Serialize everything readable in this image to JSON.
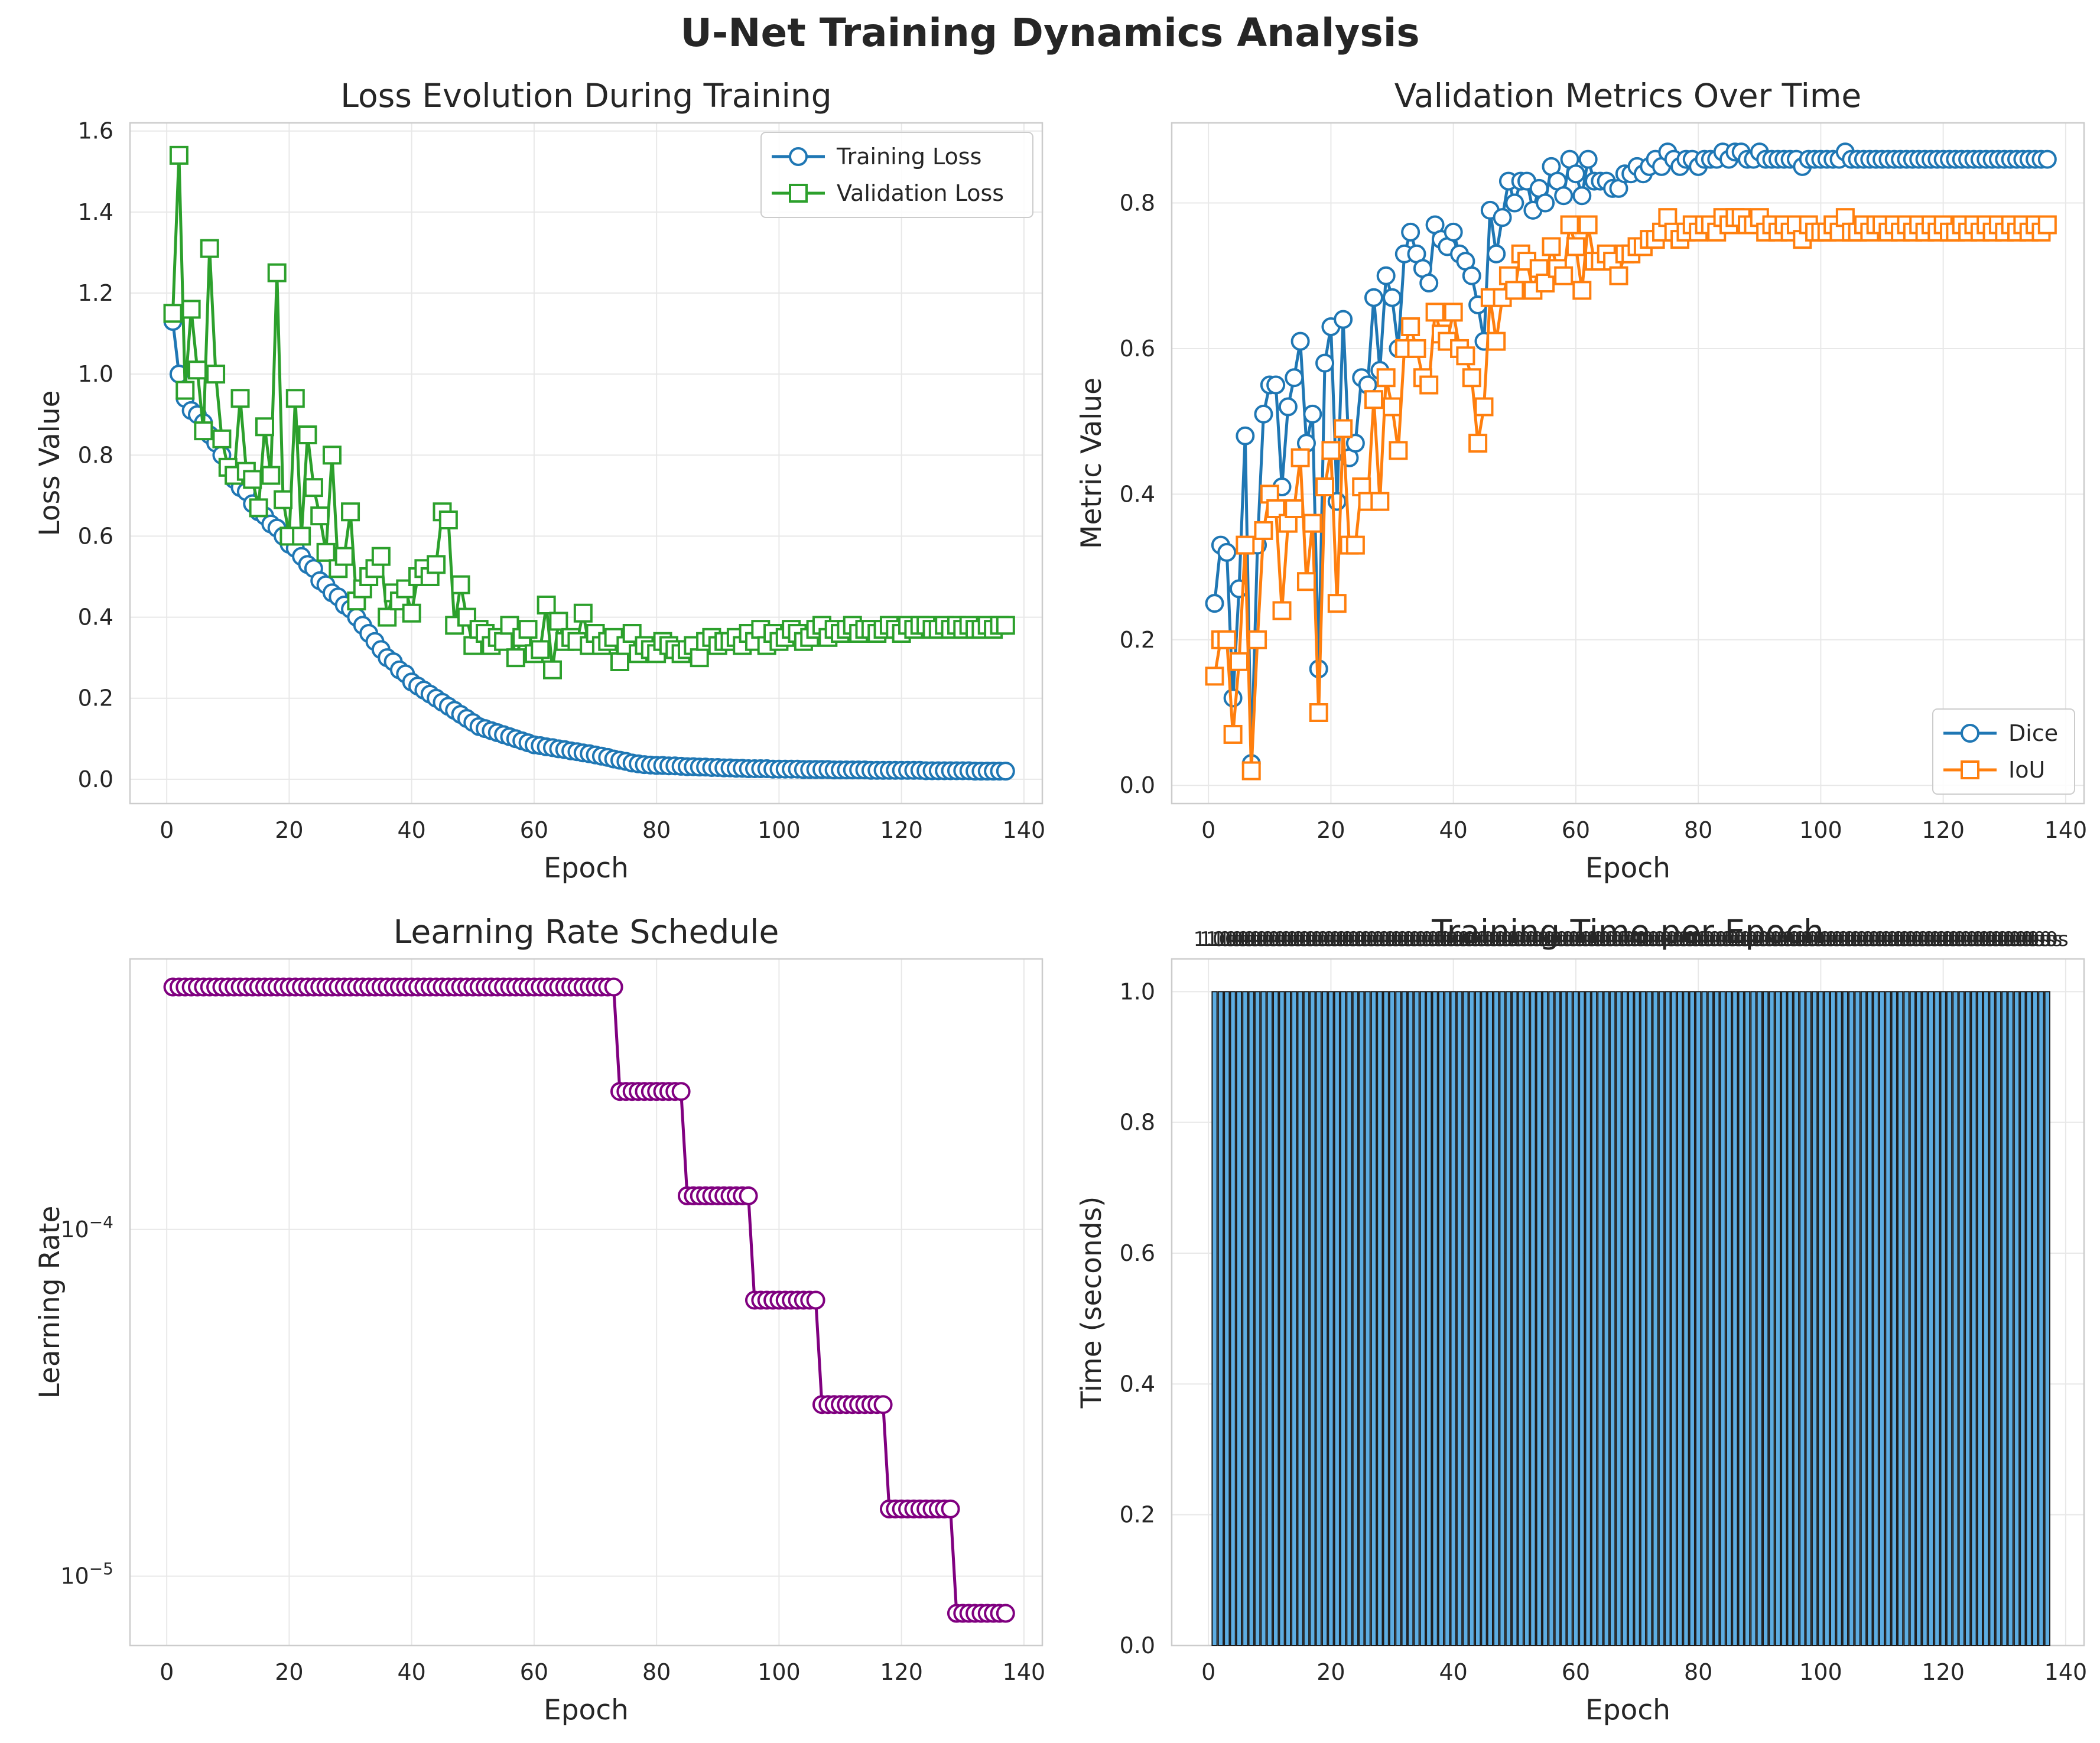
{
  "suptitle": "U-Net Training Dynamics Analysis",
  "chart_data": [
    {
      "id": "loss",
      "type": "line",
      "title": "Loss Evolution During Training",
      "xlabel": "Epoch",
      "ylabel": "Loss Value",
      "xlim": [
        -6,
        143
      ],
      "ylim": [
        -0.06,
        1.62
      ],
      "xticks": [
        0,
        20,
        40,
        60,
        80,
        100,
        120,
        140
      ],
      "yticks": [
        0.0,
        0.2,
        0.4,
        0.6,
        0.8,
        1.0,
        1.2,
        1.4,
        1.6
      ],
      "grid": true,
      "legend": "upper-right",
      "series": [
        {
          "name": "Training Loss",
          "color": "#1f77b4",
          "marker": "circle",
          "x_start": 1,
          "x_end": 137,
          "anchors": [
            [
              1,
              1.13
            ],
            [
              2,
              1.0
            ],
            [
              5,
              0.9
            ],
            [
              10,
              0.76
            ],
            [
              15,
              0.67
            ],
            [
              20,
              0.57
            ],
            [
              25,
              0.48
            ],
            [
              30,
              0.4
            ],
            [
              35,
              0.31
            ],
            [
              40,
              0.24
            ],
            [
              45,
              0.19
            ],
            [
              50,
              0.14
            ],
            [
              55,
              0.11
            ],
            [
              60,
              0.085
            ],
            [
              70,
              0.06
            ],
            [
              80,
              0.035
            ],
            [
              90,
              0.028
            ],
            [
              100,
              0.025
            ],
            [
              120,
              0.022
            ],
            [
              137,
              0.02
            ]
          ],
          "values": [
            1.13,
            1.0,
            0.94,
            0.91,
            0.9,
            0.88,
            0.85,
            0.83,
            0.8,
            0.77,
            0.74,
            0.72,
            0.71,
            0.68,
            0.66,
            0.65,
            0.63,
            0.62,
            0.6,
            0.58,
            0.57,
            0.55,
            0.53,
            0.52,
            0.49,
            0.48,
            0.46,
            0.45,
            0.43,
            0.42,
            0.4,
            0.38,
            0.36,
            0.34,
            0.32,
            0.3,
            0.29,
            0.27,
            0.26,
            0.24,
            0.23,
            0.22,
            0.21,
            0.2,
            0.19,
            0.18,
            0.17,
            0.16,
            0.15,
            0.14,
            0.13,
            0.125,
            0.12,
            0.115,
            0.11,
            0.105,
            0.1,
            0.095,
            0.09,
            0.085,
            0.083,
            0.08,
            0.078,
            0.075,
            0.073,
            0.07,
            0.068,
            0.065,
            0.063,
            0.06,
            0.057,
            0.054,
            0.05,
            0.047,
            0.044,
            0.04,
            0.038,
            0.036,
            0.035,
            0.034,
            0.034,
            0.033,
            0.033,
            0.032,
            0.031,
            0.031,
            0.03,
            0.03,
            0.029,
            0.029,
            0.028,
            0.028,
            0.027,
            0.027,
            0.026,
            0.026,
            0.026,
            0.026,
            0.025,
            0.025,
            0.025,
            0.025,
            0.025,
            0.024,
            0.024,
            0.024,
            0.024,
            0.024,
            0.023,
            0.023,
            0.023,
            0.023,
            0.023,
            0.023,
            0.022,
            0.022,
            0.022,
            0.022,
            0.022,
            0.022,
            0.022,
            0.022,
            0.022,
            0.021,
            0.021,
            0.021,
            0.021,
            0.021,
            0.021,
            0.021,
            0.021,
            0.02,
            0.02,
            0.02,
            0.02,
            0.02,
            0.02
          ]
        },
        {
          "name": "Validation Loss",
          "color": "#2ca02c",
          "marker": "square",
          "x_start": 1,
          "x_end": 137,
          "values": [
            1.15,
            1.54,
            0.96,
            1.16,
            1.01,
            0.86,
            1.31,
            1.0,
            0.84,
            0.77,
            0.75,
            0.94,
            0.76,
            0.74,
            0.67,
            0.87,
            0.75,
            1.25,
            0.69,
            0.6,
            0.94,
            0.6,
            0.85,
            0.72,
            0.65,
            0.56,
            0.8,
            0.52,
            0.55,
            0.66,
            0.44,
            0.47,
            0.5,
            0.52,
            0.55,
            0.4,
            0.46,
            0.44,
            0.47,
            0.41,
            0.5,
            0.52,
            0.5,
            0.53,
            0.66,
            0.64,
            0.38,
            0.48,
            0.4,
            0.33,
            0.37,
            0.36,
            0.33,
            0.35,
            0.34,
            0.38,
            0.3,
            0.35,
            0.37,
            0.31,
            0.32,
            0.43,
            0.27,
            0.39,
            0.34,
            0.35,
            0.34,
            0.41,
            0.33,
            0.36,
            0.33,
            0.34,
            0.35,
            0.29,
            0.33,
            0.36,
            0.31,
            0.33,
            0.32,
            0.31,
            0.34,
            0.33,
            0.32,
            0.31,
            0.32,
            0.33,
            0.3,
            0.34,
            0.35,
            0.33,
            0.34,
            0.34,
            0.35,
            0.33,
            0.36,
            0.34,
            0.37,
            0.33,
            0.36,
            0.34,
            0.35,
            0.37,
            0.36,
            0.34,
            0.35,
            0.37,
            0.38,
            0.35,
            0.37,
            0.36,
            0.37,
            0.38,
            0.36,
            0.37,
            0.37,
            0.36,
            0.37,
            0.38,
            0.37,
            0.36,
            0.38,
            0.37,
            0.38,
            0.38,
            0.37,
            0.37,
            0.38,
            0.37,
            0.38,
            0.37,
            0.38,
            0.37,
            0.37,
            0.38,
            0.37,
            0.38,
            0.38
          ]
        }
      ]
    },
    {
      "id": "metrics",
      "type": "line",
      "title": "Validation Metrics Over Time",
      "xlabel": "Epoch",
      "ylabel": "Metric Value",
      "xlim": [
        -6,
        143
      ],
      "ylim": [
        -0.025,
        0.91
      ],
      "xticks": [
        0,
        20,
        40,
        60,
        80,
        100,
        120,
        140
      ],
      "yticks": [
        0.0,
        0.2,
        0.4,
        0.6,
        0.8
      ],
      "grid": true,
      "legend": "lower-right",
      "series": [
        {
          "name": "Dice",
          "color": "#1f77b4",
          "marker": "circle",
          "x_start": 1,
          "x_end": 137,
          "values": [
            0.25,
            0.33,
            0.32,
            0.12,
            0.27,
            0.48,
            0.03,
            0.33,
            0.51,
            0.55,
            0.55,
            0.41,
            0.52,
            0.56,
            0.61,
            0.47,
            0.51,
            0.16,
            0.58,
            0.63,
            0.39,
            0.64,
            0.45,
            0.47,
            0.56,
            0.55,
            0.67,
            0.57,
            0.7,
            0.67,
            0.6,
            0.73,
            0.76,
            0.73,
            0.71,
            0.69,
            0.77,
            0.75,
            0.74,
            0.76,
            0.73,
            0.72,
            0.7,
            0.66,
            0.61,
            0.79,
            0.73,
            0.78,
            0.83,
            0.8,
            0.83,
            0.83,
            0.79,
            0.82,
            0.8,
            0.85,
            0.83,
            0.81,
            0.86,
            0.84,
            0.81,
            0.86,
            0.83,
            0.83,
            0.83,
            0.82,
            0.82,
            0.84,
            0.84,
            0.85,
            0.84,
            0.85,
            0.86,
            0.85,
            0.87,
            0.86,
            0.85,
            0.86,
            0.86,
            0.85,
            0.86,
            0.86,
            0.86,
            0.87,
            0.86,
            0.87,
            0.87,
            0.86,
            0.86,
            0.87,
            0.86,
            0.86,
            0.86,
            0.86,
            0.86,
            0.86,
            0.85,
            0.86,
            0.86,
            0.86,
            0.86,
            0.86,
            0.86,
            0.87,
            0.86,
            0.86,
            0.86,
            0.86,
            0.86,
            0.86,
            0.86,
            0.86,
            0.86,
            0.86,
            0.86,
            0.86,
            0.86,
            0.86,
            0.86,
            0.86,
            0.86,
            0.86,
            0.86,
            0.86,
            0.86,
            0.86,
            0.86,
            0.86,
            0.86,
            0.86,
            0.86,
            0.86,
            0.86,
            0.86,
            0.86,
            0.86,
            0.86
          ]
        },
        {
          "name": "IoU",
          "color": "#ff7f0e",
          "marker": "square",
          "x_start": 1,
          "x_end": 137,
          "values": [
            0.15,
            0.2,
            0.2,
            0.07,
            0.17,
            0.33,
            0.02,
            0.2,
            0.35,
            0.4,
            0.38,
            0.24,
            0.36,
            0.38,
            0.45,
            0.28,
            0.36,
            0.1,
            0.41,
            0.46,
            0.25,
            0.49,
            0.33,
            0.33,
            0.41,
            0.39,
            0.53,
            0.39,
            0.56,
            0.52,
            0.46,
            0.6,
            0.63,
            0.6,
            0.56,
            0.55,
            0.65,
            0.62,
            0.61,
            0.65,
            0.6,
            0.59,
            0.56,
            0.47,
            0.52,
            0.67,
            0.61,
            0.67,
            0.7,
            0.68,
            0.73,
            0.72,
            0.68,
            0.71,
            0.69,
            0.74,
            0.71,
            0.7,
            0.77,
            0.74,
            0.68,
            0.77,
            0.72,
            0.72,
            0.73,
            0.72,
            0.7,
            0.73,
            0.73,
            0.74,
            0.74,
            0.75,
            0.75,
            0.76,
            0.78,
            0.76,
            0.75,
            0.76,
            0.77,
            0.76,
            0.77,
            0.77,
            0.76,
            0.78,
            0.77,
            0.78,
            0.78,
            0.77,
            0.77,
            0.78,
            0.76,
            0.77,
            0.76,
            0.77,
            0.76,
            0.77,
            0.75,
            0.77,
            0.76,
            0.76,
            0.76,
            0.77,
            0.76,
            0.78,
            0.76,
            0.76,
            0.77,
            0.76,
            0.77,
            0.77,
            0.76,
            0.77,
            0.76,
            0.77,
            0.76,
            0.77,
            0.76,
            0.77,
            0.76,
            0.77,
            0.76,
            0.76,
            0.77,
            0.76,
            0.77,
            0.76,
            0.77,
            0.76,
            0.77,
            0.76,
            0.77,
            0.76,
            0.77,
            0.76,
            0.77,
            0.76,
            0.77
          ]
        }
      ]
    },
    {
      "id": "lr",
      "type": "line",
      "title": "Learning Rate Schedule",
      "xlabel": "Epoch",
      "ylabel": "Learning Rate",
      "yscale": "log",
      "xlim": [
        -6,
        143
      ],
      "ylim_log10": [
        -5.2,
        -3.22
      ],
      "xticks": [
        0,
        20,
        40,
        60,
        80,
        100,
        120,
        140
      ],
      "yticks_log": [
        {
          "exp": -4,
          "label": "10",
          "sup": "−4"
        },
        {
          "exp": -5,
          "label": "10",
          "sup": "−5"
        }
      ],
      "grid": true,
      "series": [
        {
          "name": "",
          "color": "#800080",
          "marker": "circle",
          "x_start": 1,
          "x_end": 137,
          "steps": [
            {
              "from": 1,
              "to": 73,
              "value": 0.0005
            },
            {
              "from": 74,
              "to": 84,
              "value": 0.00025
            },
            {
              "from": 85,
              "to": 95,
              "value": 0.000125
            },
            {
              "from": 96,
              "to": 106,
              "value": 6.25e-05
            },
            {
              "from": 107,
              "to": 117,
              "value": 3.125e-05
            },
            {
              "from": 118,
              "to": 128,
              "value": 1.5625e-05
            },
            {
              "from": 129,
              "to": 137,
              "value": 7.8125e-06
            }
          ]
        }
      ]
    },
    {
      "id": "time",
      "type": "bar",
      "title": "Training Time per Epoch",
      "xlabel": "Epoch",
      "ylabel": "Time (seconds)",
      "xlim": [
        -6,
        143
      ],
      "ylim": [
        0,
        1.05
      ],
      "xticks": [
        0,
        20,
        40,
        60,
        80,
        100,
        120,
        140
      ],
      "yticks": [
        0.0,
        0.2,
        0.4,
        0.6,
        0.8,
        1.0
      ],
      "grid": true,
      "x_start": 1,
      "x_end": 137,
      "value": 1.0,
      "bar_label": "1.0s",
      "bar_color": "#5dade2",
      "edge_color": "#1b1b1b"
    }
  ]
}
